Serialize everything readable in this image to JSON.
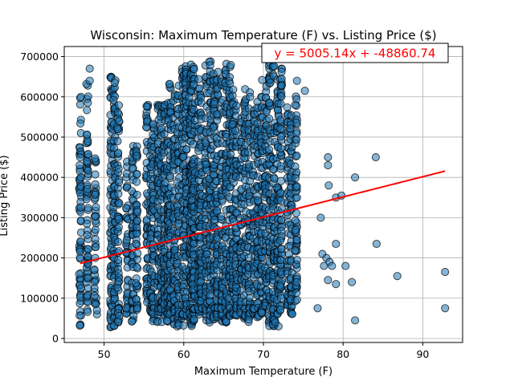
{
  "chart_data": {
    "type": "scatter",
    "title": "Wisconsin: Maximum Temperature (F) vs. Listing Price ($)",
    "xlabel": "Maximum Temperature (F)",
    "ylabel": "Listing Price ($)",
    "xlim": [
      45,
      95
    ],
    "ylim": [
      -10000,
      725000
    ],
    "xticks": [
      50,
      60,
      70,
      80,
      90
    ],
    "yticks": [
      0,
      100000,
      200000,
      300000,
      400000,
      500000,
      600000,
      700000
    ],
    "xtick_labels": [
      "50",
      "60",
      "70",
      "80",
      "90"
    ],
    "ytick_labels": [
      "0",
      "100000",
      "200000",
      "300000",
      "400000",
      "500000",
      "600000",
      "700000"
    ],
    "grid": true,
    "marker_color": "#1f77b4",
    "line_color": "#ff0000",
    "regression": {
      "slope": 5005.14,
      "intercept": -48860.74,
      "x_start": 47,
      "x_end": 92.8,
      "equation": "y = 5005.14x + -48860.74"
    },
    "temperature_columns": [
      47,
      47.9,
      48.9,
      50.9,
      51.3,
      51.8,
      52.9,
      53.6,
      54.1,
      55.4,
      55.9,
      56.2,
      56.8,
      57.2,
      57.6,
      58,
      58.3,
      58.8,
      59.3,
      59.9,
      60.3,
      60.8,
      61,
      61.3,
      61.9,
      62.2,
      62.8,
      63.3,
      63.8,
      64.2,
      64.8,
      65.3,
      65.8,
      66.2,
      66.6,
      67.2,
      67.7,
      68.2,
      68.8,
      69.3,
      69.8,
      70.3,
      70.8,
      71.3,
      71.8,
      72.2,
      73.1,
      73.5,
      74.1
    ],
    "dense_ranges": [
      [
        30000,
        600000
      ],
      [
        60000,
        650000
      ],
      [
        80000,
        450000
      ],
      [
        25000,
        680000
      ],
      [
        30000,
        650000
      ],
      [
        40000,
        600000
      ],
      [
        60000,
        450000
      ],
      [
        40000,
        480000
      ],
      [
        70000,
        500000
      ],
      [
        90000,
        600000
      ],
      [
        60000,
        520000
      ],
      [
        40000,
        540000
      ],
      [
        40000,
        580000
      ],
      [
        30000,
        590000
      ],
      [
        50000,
        600000
      ],
      [
        40000,
        600000
      ],
      [
        60000,
        640000
      ],
      [
        35000,
        620000
      ],
      [
        30000,
        640000
      ],
      [
        30000,
        680000
      ],
      [
        50000,
        680000
      ],
      [
        40000,
        650000
      ],
      [
        30000,
        680000
      ],
      [
        40000,
        690000
      ],
      [
        60000,
        660000
      ],
      [
        60000,
        620000
      ],
      [
        45000,
        680000
      ],
      [
        40000,
        690000
      ],
      [
        30000,
        660000
      ],
      [
        50000,
        680000
      ],
      [
        40000,
        650000
      ],
      [
        40000,
        690000
      ],
      [
        55000,
        680000
      ],
      [
        60000,
        620000
      ],
      [
        50000,
        600000
      ],
      [
        60000,
        560000
      ],
      [
        45000,
        620000
      ],
      [
        40000,
        620000
      ],
      [
        60000,
        580000
      ],
      [
        50000,
        600000
      ],
      [
        60000,
        650000
      ],
      [
        80000,
        640000
      ],
      [
        30000,
        700000
      ],
      [
        30000,
        690000
      ],
      [
        60000,
        650000
      ],
      [
        40000,
        690000
      ],
      [
        80000,
        580000
      ],
      [
        60000,
        560000
      ],
      [
        90000,
        640000
      ]
    ],
    "sparse_points": [
      {
        "x": 76.8,
        "y": 75000
      },
      {
        "x": 77.2,
        "y": 300000
      },
      {
        "x": 77.4,
        "y": 210000
      },
      {
        "x": 77.6,
        "y": 180000
      },
      {
        "x": 77.9,
        "y": 200000
      },
      {
        "x": 78.1,
        "y": 450000
      },
      {
        "x": 78.1,
        "y": 430000
      },
      {
        "x": 78.2,
        "y": 380000
      },
      {
        "x": 78.1,
        "y": 145000
      },
      {
        "x": 78.3,
        "y": 190000
      },
      {
        "x": 78.6,
        "y": 180000
      },
      {
        "x": 79.1,
        "y": 350000
      },
      {
        "x": 79.1,
        "y": 235000
      },
      {
        "x": 79.1,
        "y": 135000
      },
      {
        "x": 79.8,
        "y": 355000
      },
      {
        "x": 80.3,
        "y": 180000
      },
      {
        "x": 81.1,
        "y": 140000
      },
      {
        "x": 81.5,
        "y": 400000
      },
      {
        "x": 81.5,
        "y": 45000
      },
      {
        "x": 84.1,
        "y": 450000
      },
      {
        "x": 84.2,
        "y": 235000
      },
      {
        "x": 86.8,
        "y": 155000
      },
      {
        "x": 92.8,
        "y": 165000
      },
      {
        "x": 92.8,
        "y": 75000
      },
      {
        "x": 47.1,
        "y": 125000
      },
      {
        "x": 47.1,
        "y": 600000
      },
      {
        "x": 47.0,
        "y": 450000
      },
      {
        "x": 48.2,
        "y": 670000
      },
      {
        "x": 48.2,
        "y": 640000
      },
      {
        "x": 49.1,
        "y": 60000
      },
      {
        "x": 49.1,
        "y": 70000
      },
      {
        "x": 71.9,
        "y": 30000
      },
      {
        "x": 71.5,
        "y": 40000
      },
      {
        "x": 74.2,
        "y": 640000
      },
      {
        "x": 75.2,
        "y": 615000
      },
      {
        "x": 71.2,
        "y": 710000
      }
    ]
  }
}
